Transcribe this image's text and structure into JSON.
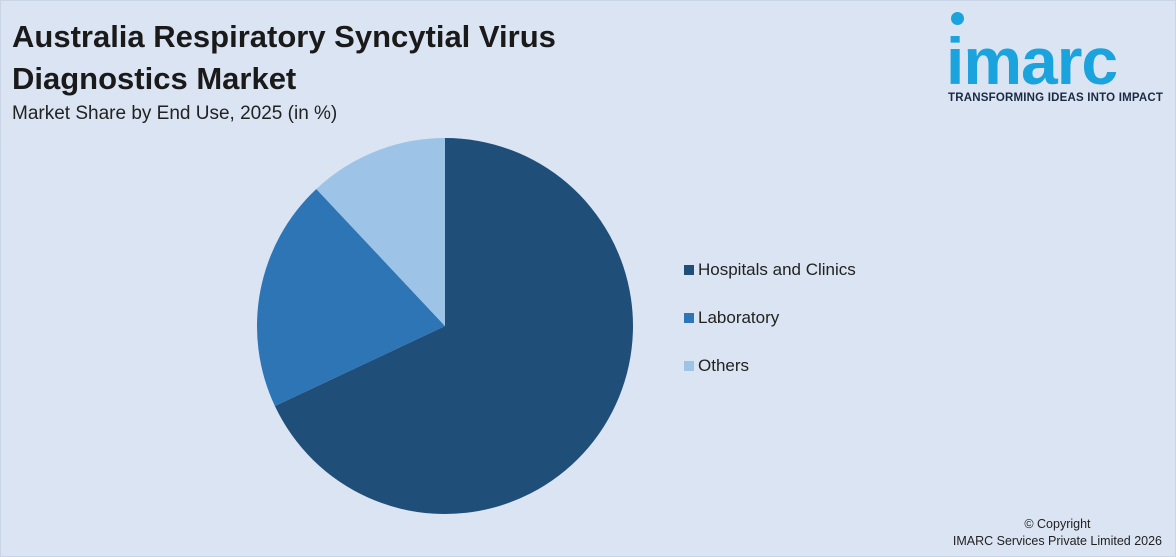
{
  "title": "Australia Respiratory Syncytial Virus Diagnostics Market",
  "subtitle": "Market Share by End Use, 2025 (in %)",
  "logo": {
    "wordmark": "imarc",
    "tagline": "TRANSFORMING IDEAS INTO IMPACT",
    "color": "#1aa3dd"
  },
  "chart_data": {
    "type": "pie",
    "title": "Market Share by End Use, 2025 (in %)",
    "categories": [
      "Hospitals and Clinics",
      "Laboratory",
      "Others"
    ],
    "values": [
      68,
      20,
      12
    ],
    "colors": [
      "#1f4e79",
      "#2e75b6",
      "#9dc3e6"
    ],
    "legend_position": "right"
  },
  "legend": [
    {
      "label": "Hospitals and Clinics",
      "color": "#1f4e79"
    },
    {
      "label": "Laboratory",
      "color": "#2e75b6"
    },
    {
      "label": "Others",
      "color": "#9dc3e6"
    }
  ],
  "copyright": {
    "line1": "© Copyright",
    "line2": "IMARC Services Private Limited 2026"
  }
}
